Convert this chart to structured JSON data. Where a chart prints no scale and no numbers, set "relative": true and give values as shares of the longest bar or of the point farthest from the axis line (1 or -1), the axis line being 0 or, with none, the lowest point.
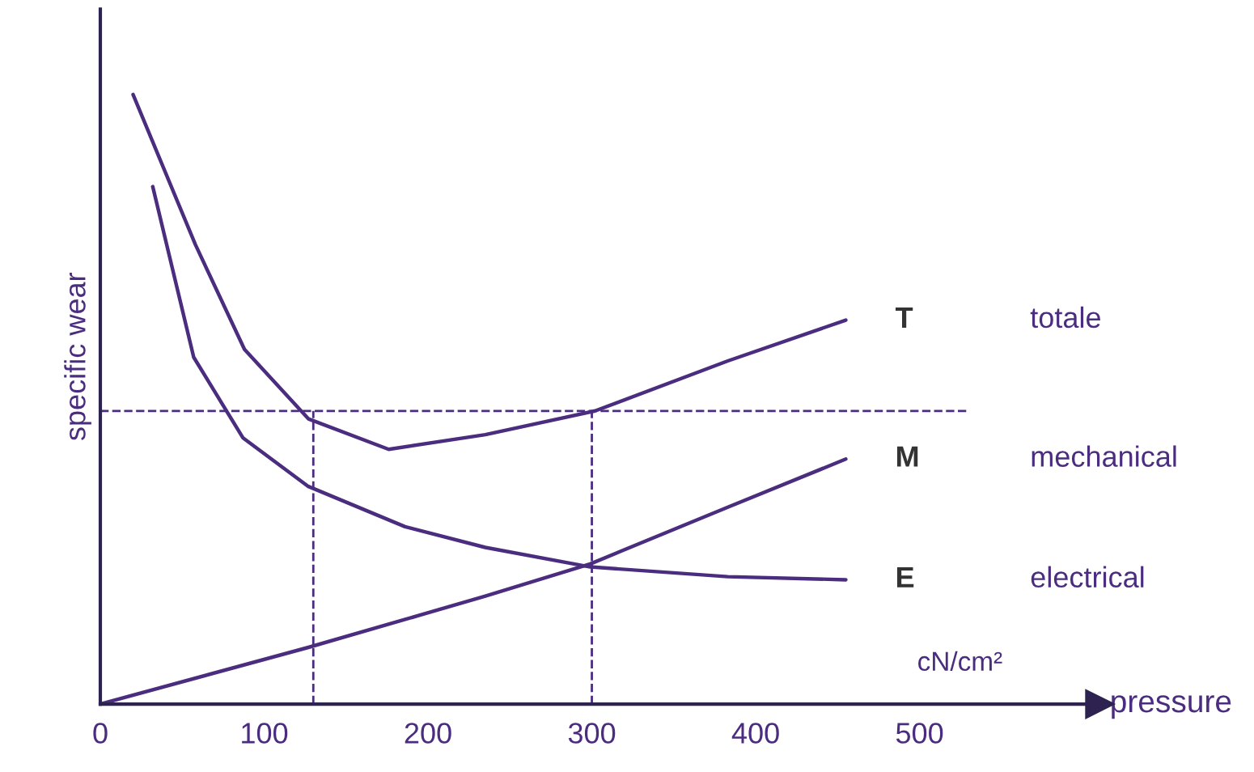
{
  "chart_data": {
    "type": "line",
    "relative": true,
    "xlabel": "pressure",
    "ylabel": "specific wear",
    "xlim": [
      0,
      610
    ],
    "xticks": [
      0,
      100,
      200,
      300,
      400,
      500
    ],
    "grid": false,
    "marker": "none",
    "line_style": "solid",
    "series": [
      {
        "name": "T",
        "color": "#4b2d7f",
        "x": [
          20,
          58,
          88,
          127,
          176,
          235,
          302,
          383,
          455
        ],
        "values": [
          1.0,
          0.754,
          0.582,
          0.468,
          0.418,
          0.442,
          0.481,
          0.563,
          0.63
        ]
      },
      {
        "name": "M",
        "color": "#4b2d7f",
        "x": [
          0,
          127,
          235,
          299,
          383,
          455
        ],
        "values": [
          0,
          0.093,
          0.177,
          0.23,
          0.323,
          0.402
        ]
      },
      {
        "name": "E",
        "color": "#4b2d7f",
        "x": [
          32,
          57,
          87,
          127,
          186,
          235,
          299,
          383,
          455
        ],
        "values": [
          0.849,
          0.569,
          0.437,
          0.357,
          0.291,
          0.257,
          0.225,
          0.209,
          0.204
        ]
      }
    ],
    "ref_lines": [
      {
        "axis": "y",
        "value": 0.481,
        "color": "#4b2d7f",
        "line_style": "dashed"
      },
      {
        "axis": "x",
        "value": 130,
        "color": "#4b2d7f",
        "line_style": "dashed"
      },
      {
        "axis": "x",
        "value": 300,
        "color": "#4b2d7f",
        "line_style": "dashed"
      }
    ],
    "annotations": [
      "totale",
      "mechanical",
      "electrical",
      "cN/cm²"
    ]
  }
}
